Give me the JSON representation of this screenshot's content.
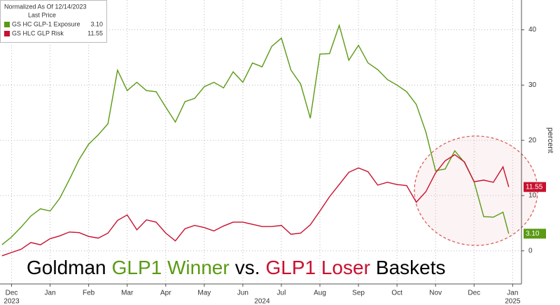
{
  "chart_data": {
    "type": "line",
    "legend_header": [
      "Normalized As Of 12/14/2023",
      "Last Price"
    ],
    "title_parts": [
      {
        "text": "Goldman",
        "color": "#000000"
      },
      {
        "text": "GLP1 Winner",
        "color": "#5a9a14"
      },
      {
        "text": "vs.",
        "color": "#000000"
      },
      {
        "text": "GLP1 Loser",
        "color": "#c8102e"
      },
      {
        "text": "Baskets",
        "color": "#000000"
      }
    ],
    "ylabel": "percent",
    "x": [
      0.25,
      0.5,
      0.75,
      1,
      1.25,
      1.5,
      1.75,
      2,
      2.25,
      2.5,
      2.75,
      3,
      3.25,
      3.5,
      3.75,
      4,
      4.25,
      4.5,
      4.75,
      5,
      5.25,
      5.5,
      5.75,
      6,
      6.25,
      6.5,
      6.75,
      7,
      7.25,
      7.5,
      7.75,
      8,
      8.25,
      8.5,
      8.75,
      9,
      9.25,
      9.5,
      9.75,
      10,
      10.25,
      10.5,
      10.75,
      11,
      11.25,
      11.5,
      11.75,
      12,
      12.25,
      12.5,
      12.75,
      13,
      13.25,
      13.4
    ],
    "series": [
      {
        "name": "GS HC GLP-1 Exposure",
        "color": "#5a9a14",
        "last_price_label": "3.10",
        "values": [
          1.1,
          2.5,
          4.3,
          6.3,
          7.6,
          7.2,
          9.5,
          12.9,
          16.5,
          19.3,
          21,
          23,
          32.7,
          29,
          30.5,
          29,
          28.8,
          26,
          23.3,
          27,
          27.6,
          29.7,
          30.5,
          29.5,
          32.4,
          30.5,
          34,
          33.3,
          37,
          38.5,
          32.7,
          30.2,
          24,
          35.6,
          35.7,
          40.8,
          34.5,
          37.2,
          34,
          32.8,
          31,
          30,
          28.8,
          26.5,
          21.5,
          14.5,
          14.8,
          18.1,
          16,
          12.5,
          6.2,
          6.1,
          7,
          3.1
        ]
      },
      {
        "name": "GS HLC GLP Risk",
        "color": "#c8102e",
        "last_price_label": "11.55",
        "values": [
          -0.9,
          -0.3,
          0.3,
          1.5,
          1.1,
          2.2,
          2.7,
          3.4,
          3.3,
          2.6,
          2.3,
          3.2,
          5.5,
          6.5,
          3.8,
          5.6,
          5.2,
          3.2,
          1.8,
          4,
          4.6,
          4.2,
          3.6,
          4.5,
          5.2,
          5.2,
          4.8,
          4.4,
          4.4,
          4.6,
          3,
          3.2,
          4.7,
          7.2,
          9.8,
          12,
          14.2,
          15,
          14.3,
          11.9,
          12.4,
          12,
          11.8,
          8.8,
          10.7,
          14.1,
          16.3,
          17.4,
          16.1,
          12.5,
          12.8,
          12.4,
          15.2,
          11.55
        ]
      }
    ],
    "xlim": [
      0.2,
      13.73
    ],
    "xticks": [
      {
        "value": 0.5,
        "label": "Dec"
      },
      {
        "value": 1.5,
        "label": "Jan"
      },
      {
        "value": 2.5,
        "label": "Feb"
      },
      {
        "value": 3.5,
        "label": "Mar"
      },
      {
        "value": 4.5,
        "label": "Apr"
      },
      {
        "value": 5.5,
        "label": "May"
      },
      {
        "value": 6.5,
        "label": "Jun"
      },
      {
        "value": 7.5,
        "label": "Jul"
      },
      {
        "value": 8.5,
        "label": "Aug"
      },
      {
        "value": 9.5,
        "label": "Sep"
      },
      {
        "value": 10.5,
        "label": "Oct"
      },
      {
        "value": 11.5,
        "label": "Nov"
      },
      {
        "value": 12.5,
        "label": "Dec"
      },
      {
        "value": 13.5,
        "label": "Jan"
      }
    ],
    "year_ticks": [
      {
        "value": 0.5,
        "label": "2023"
      },
      {
        "value": 7,
        "label": "2024"
      },
      {
        "value": 13.5,
        "label": "2025"
      }
    ],
    "ylim": [
      -6,
      45.4
    ],
    "yticks": [
      0,
      10,
      20,
      30,
      40
    ],
    "grid": true
  }
}
